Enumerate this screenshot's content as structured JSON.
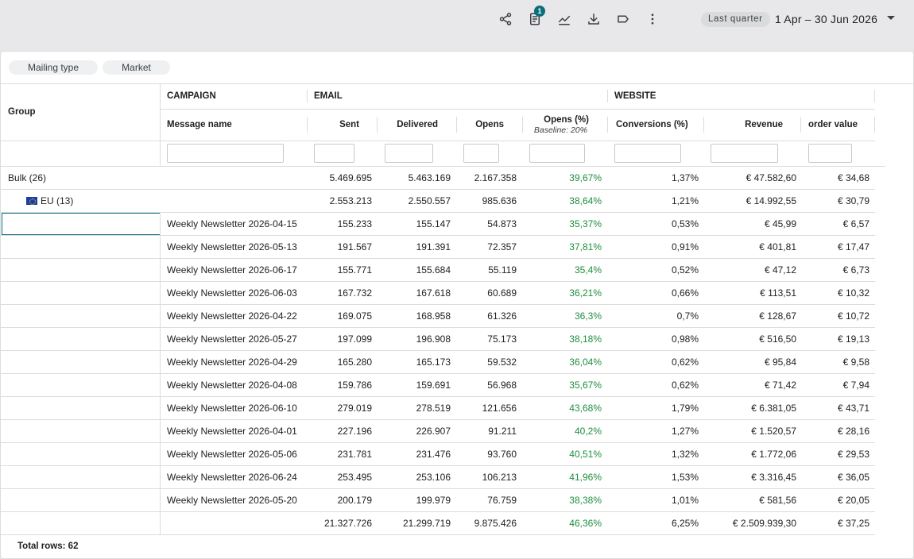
{
  "toolbar": {
    "icons": [
      "share-icon",
      "report-icon",
      "trend-icon",
      "download-icon",
      "label-icon",
      "more-vert-icon"
    ],
    "report_badge": "1",
    "date_preset": "Last quarter",
    "date_range": "1 Apr – 30 Jun 2026"
  },
  "filters": {
    "chips": [
      "Mailing type",
      "Market"
    ]
  },
  "table": {
    "group_header": "Group",
    "sections": {
      "campaign": "CAMPAIGN",
      "email": "EMAIL",
      "website": "WEBSITE"
    },
    "columns": {
      "message_name": "Message name",
      "sent": "Sent",
      "delivered": "Delivered",
      "opens": "Opens",
      "opens_pct": "Opens (%)",
      "opens_pct_baseline": "Baseline: 20%",
      "conversions_pct": "Conversions (%)",
      "revenue": "Revenue",
      "order_value": "order value"
    },
    "group_rows": [
      {
        "label": "Bulk (26)",
        "sent": "5.469.695",
        "delivered": "5.463.169",
        "opens": "2.167.358",
        "opens_pct": "39,67%",
        "conv": "1,37%",
        "revenue": "€ 47.582,60",
        "order": "€ 34,68"
      },
      {
        "label": "EU (13)",
        "sent": "2.553.213",
        "delivered": "2.550.557",
        "opens": "985.636",
        "opens_pct": "38,64%",
        "conv": "1,21%",
        "revenue": "€ 14.992,55",
        "order": "€ 30,79"
      }
    ],
    "rows": [
      {
        "name": "Weekly Newsletter 2026-04-15",
        "sent": "155.233",
        "delivered": "155.147",
        "opens": "54.873",
        "opens_pct": "35,37%",
        "conv": "0,53%",
        "revenue": "€ 45,99",
        "order": "€ 6,57"
      },
      {
        "name": "Weekly Newsletter 2026-05-13",
        "sent": "191.567",
        "delivered": "191.391",
        "opens": "72.357",
        "opens_pct": "37,81%",
        "conv": "0,91%",
        "revenue": "€ 401,81",
        "order": "€ 17,47"
      },
      {
        "name": "Weekly Newsletter 2026-06-17",
        "sent": "155.771",
        "delivered": "155.684",
        "opens": "55.119",
        "opens_pct": "35,4%",
        "conv": "0,52%",
        "revenue": "€ 47,12",
        "order": "€ 6,73"
      },
      {
        "name": "Weekly Newsletter 2026-06-03",
        "sent": "167.732",
        "delivered": "167.618",
        "opens": "60.689",
        "opens_pct": "36,21%",
        "conv": "0,66%",
        "revenue": "€ 113,51",
        "order": "€ 10,32"
      },
      {
        "name": "Weekly Newsletter 2026-04-22",
        "sent": "169.075",
        "delivered": "168.958",
        "opens": "61.326",
        "opens_pct": "36,3%",
        "conv": "0,7%",
        "revenue": "€ 128,67",
        "order": "€ 10,72"
      },
      {
        "name": "Weekly Newsletter 2026-05-27",
        "sent": "197.099",
        "delivered": "196.908",
        "opens": "75.173",
        "opens_pct": "38,18%",
        "conv": "0,98%",
        "revenue": "€ 516,50",
        "order": "€ 19,13"
      },
      {
        "name": "Weekly Newsletter 2026-04-29",
        "sent": "165.280",
        "delivered": "165.173",
        "opens": "59.532",
        "opens_pct": "36,04%",
        "conv": "0,62%",
        "revenue": "€ 95,84",
        "order": "€ 9,58"
      },
      {
        "name": "Weekly Newsletter 2026-04-08",
        "sent": "159.786",
        "delivered": "159.691",
        "opens": "56.968",
        "opens_pct": "35,67%",
        "conv": "0,62%",
        "revenue": "€ 71,42",
        "order": "€ 7,94"
      },
      {
        "name": "Weekly Newsletter 2026-06-10",
        "sent": "279.019",
        "delivered": "278.519",
        "opens": "121.656",
        "opens_pct": "43,68%",
        "conv": "1,79%",
        "revenue": "€ 6.381,05",
        "order": "€ 43,71"
      },
      {
        "name": "Weekly Newsletter 2026-04-01",
        "sent": "227.196",
        "delivered": "226.907",
        "opens": "91.211",
        "opens_pct": "40,2%",
        "conv": "1,27%",
        "revenue": "€ 1.520,57",
        "order": "€ 28,16"
      },
      {
        "name": "Weekly Newsletter 2026-05-06",
        "sent": "231.781",
        "delivered": "231.476",
        "opens": "93.760",
        "opens_pct": "40,51%",
        "conv": "1,32%",
        "revenue": "€ 1.772,06",
        "order": "€ 29,53"
      },
      {
        "name": "Weekly Newsletter 2026-06-24",
        "sent": "253.495",
        "delivered": "253.106",
        "opens": "106.213",
        "opens_pct": "41,96%",
        "conv": "1,53%",
        "revenue": "€ 3.316,45",
        "order": "€ 36,05"
      },
      {
        "name": "Weekly Newsletter 2026-05-20",
        "sent": "200.179",
        "delivered": "199.979",
        "opens": "76.759",
        "opens_pct": "38,38%",
        "conv": "1,01%",
        "revenue": "€ 581,56",
        "order": "€ 20,05"
      }
    ],
    "totals": {
      "sent": "21.327.726",
      "delivered": "21.299.719",
      "opens": "9.875.426",
      "opens_pct": "46,36%",
      "conv": "6,25%",
      "revenue": "€ 2.509.939,30",
      "order": "€ 37,25"
    }
  },
  "footer": {
    "total_rows": "Total rows: 62"
  },
  "colors": {
    "accent": "#0b6e7a",
    "positive": "#1e8e3e"
  }
}
